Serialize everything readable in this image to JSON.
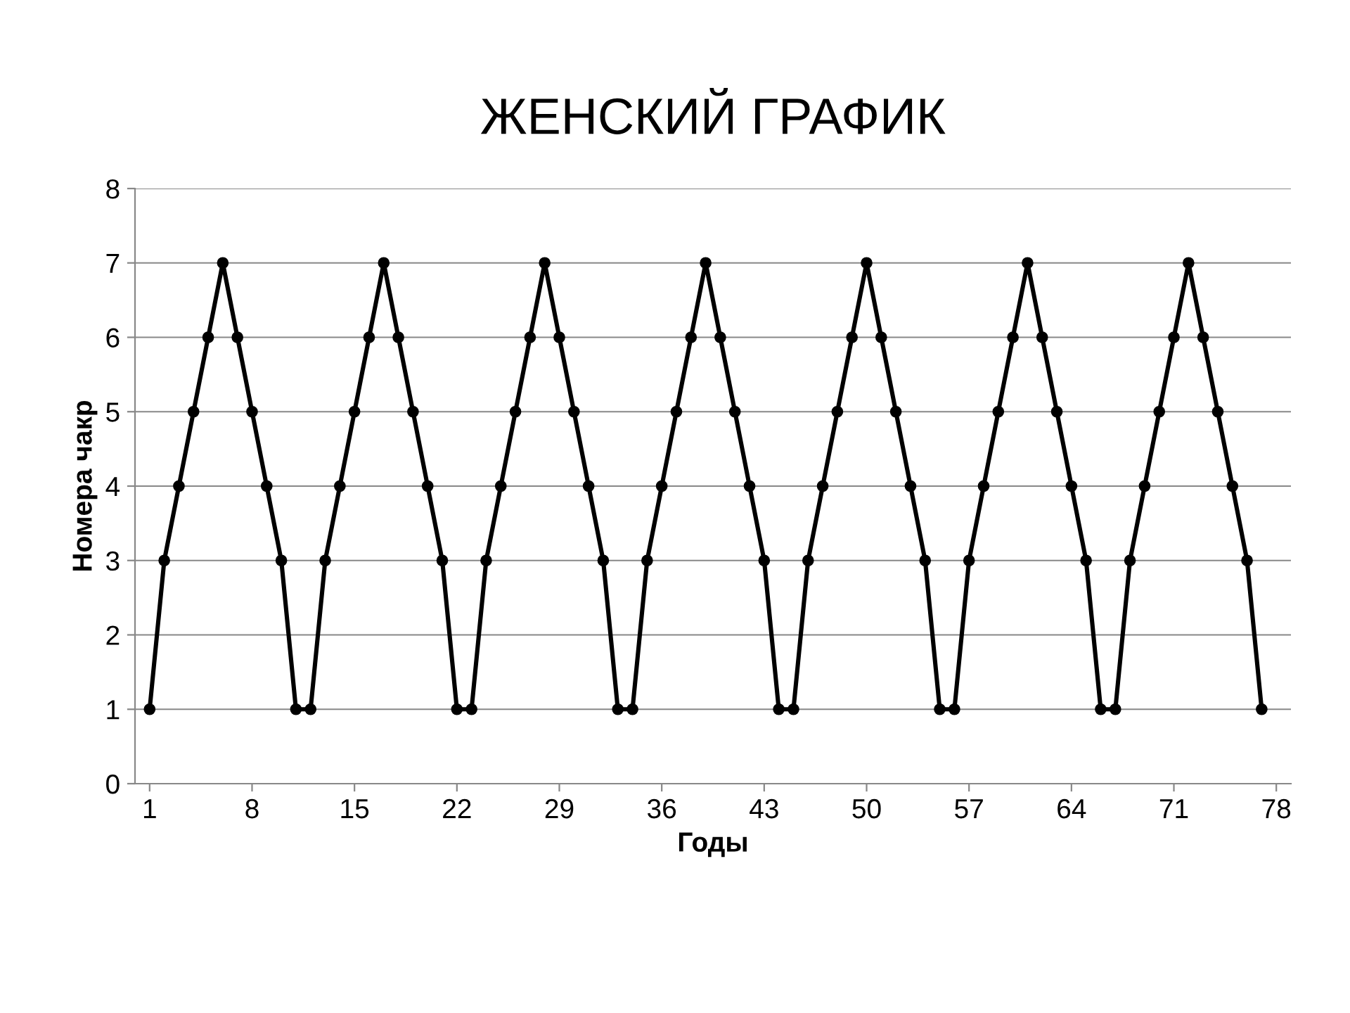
{
  "chart_data": {
    "type": "line",
    "title": "ЖЕНСКИЙ ГРАФИК",
    "xlabel": "Годы",
    "ylabel": "Номера чакр",
    "x": [
      1,
      2,
      3,
      4,
      5,
      6,
      7,
      8,
      9,
      10,
      11,
      12,
      13,
      14,
      15,
      16,
      17,
      18,
      19,
      20,
      21,
      22,
      23,
      24,
      25,
      26,
      27,
      28,
      29,
      30,
      31,
      32,
      33,
      34,
      35,
      36,
      37,
      38,
      39,
      40,
      41,
      42,
      43,
      44,
      45,
      46,
      47,
      48,
      49,
      50,
      51,
      52,
      53,
      54,
      55,
      56,
      57,
      58,
      59,
      60,
      61,
      62,
      63,
      64,
      65,
      66,
      67,
      68,
      69,
      70,
      71,
      72,
      73,
      74,
      75,
      76,
      77
    ],
    "series": [
      {
        "color": "#000000",
        "values": [
          1,
          3,
          4,
          5,
          6,
          7,
          6,
          5,
          4,
          3,
          1,
          1,
          3,
          4,
          5,
          6,
          7,
          6,
          5,
          4,
          3,
          1,
          1,
          3,
          4,
          5,
          6,
          7,
          6,
          5,
          4,
          3,
          1,
          1,
          3,
          4,
          5,
          6,
          7,
          6,
          5,
          4,
          3,
          1,
          1,
          3,
          4,
          5,
          6,
          7,
          6,
          5,
          4,
          3,
          1,
          1,
          3,
          4,
          5,
          6,
          7,
          6,
          5,
          4,
          3,
          1,
          1,
          3,
          4,
          5,
          6,
          7,
          6,
          5,
          4,
          3,
          1
        ]
      }
    ],
    "xlim": [
      0,
      79
    ],
    "xticks": [
      1,
      8,
      15,
      22,
      29,
      36,
      43,
      50,
      57,
      64,
      71,
      78
    ],
    "ylim": [
      0,
      8
    ],
    "yticks": [
      0,
      1,
      2,
      3,
      4,
      5,
      6,
      7,
      8
    ],
    "grid": "y",
    "marker": "circle",
    "line_style": "solid"
  }
}
